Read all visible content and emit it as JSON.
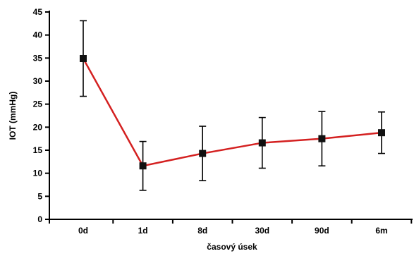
{
  "chart_data": {
    "type": "line",
    "title": "",
    "xlabel": "časový úsek",
    "ylabel": "IOT (mmHg)",
    "ylim": [
      0,
      45
    ],
    "yticks": [
      0,
      5,
      10,
      15,
      20,
      25,
      30,
      35,
      40,
      45
    ],
    "categories": [
      "0d",
      "1d",
      "8d",
      "30d",
      "90d",
      "6m"
    ],
    "series": [
      {
        "values": [
          34.9,
          11.6,
          14.3,
          16.6,
          17.5,
          18.8
        ],
        "error_low": [
          26.7,
          6.3,
          8.4,
          11.1,
          11.6,
          14.3
        ],
        "error_high": [
          43.1,
          16.9,
          20.2,
          22.1,
          23.4,
          23.3
        ]
      }
    ],
    "colors": {
      "line": "#d42020",
      "marker": "#111111",
      "axis": "#000000",
      "errorbar": "#000000"
    },
    "grid": false,
    "legend": "none"
  }
}
